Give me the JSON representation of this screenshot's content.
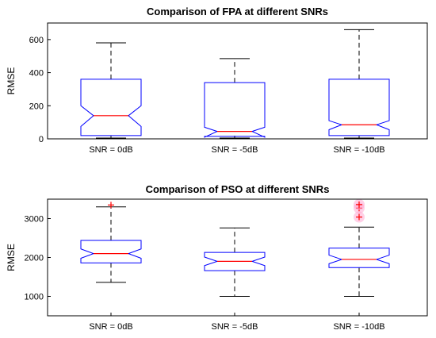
{
  "chart_data": [
    {
      "type": "box",
      "title": "Comparison of FPA at different SNRs",
      "xlabel": "",
      "ylabel": "RMSE",
      "ylim": [
        0,
        700
      ],
      "yticks": [
        0,
        200,
        400,
        600
      ],
      "notched": true,
      "categories": [
        "SNR = 0dB",
        "SNR = -5dB",
        "SNR = -10dB"
      ],
      "boxes": [
        {
          "whisker_low": 5,
          "q1": 20,
          "median": 140,
          "q3": 360,
          "whisker_high": 580,
          "notch_low": 75,
          "notch_high": 200,
          "outliers": []
        },
        {
          "whisker_low": 5,
          "q1": 15,
          "median": 45,
          "q3": 340,
          "whisker_high": 485,
          "notch_low": 10,
          "notch_high": 70,
          "outliers": []
        },
        {
          "whisker_low": 5,
          "q1": 20,
          "median": 85,
          "q3": 360,
          "whisker_high": 660,
          "notch_low": 55,
          "notch_high": 110,
          "outliers": []
        }
      ]
    },
    {
      "type": "box",
      "title": "Comparison of PSO at different SNRs",
      "xlabel": "",
      "ylabel": "RMSE",
      "ylim": [
        500,
        3500
      ],
      "yticks": [
        1000,
        2000,
        3000
      ],
      "notched": true,
      "categories": [
        "SNR = 0dB",
        "SNR = -5dB",
        "SNR = -10dB"
      ],
      "boxes": [
        {
          "whisker_low": 1360,
          "q1": 1860,
          "median": 2100,
          "q3": 2440,
          "whisker_high": 3300,
          "notch_low": 1980,
          "notch_high": 2220,
          "outliers": [
            3350
          ]
        },
        {
          "whisker_low": 1000,
          "q1": 1660,
          "median": 1900,
          "q3": 2130,
          "whisker_high": 2760,
          "notch_low": 1790,
          "notch_high": 2010,
          "outliers": []
        },
        {
          "whisker_low": 1000,
          "q1": 1740,
          "median": 1950,
          "q3": 2240,
          "whisker_high": 2780,
          "notch_low": 1840,
          "notch_high": 2060,
          "outliers": [
            3040,
            3270,
            3360
          ]
        }
      ]
    }
  ],
  "colors": {
    "box": "#0000ff",
    "median": "#ff0000",
    "whisker": "#000000",
    "outlier": "#ff0000",
    "outlier_halo": "#ffaad4",
    "axes": "#000000"
  }
}
